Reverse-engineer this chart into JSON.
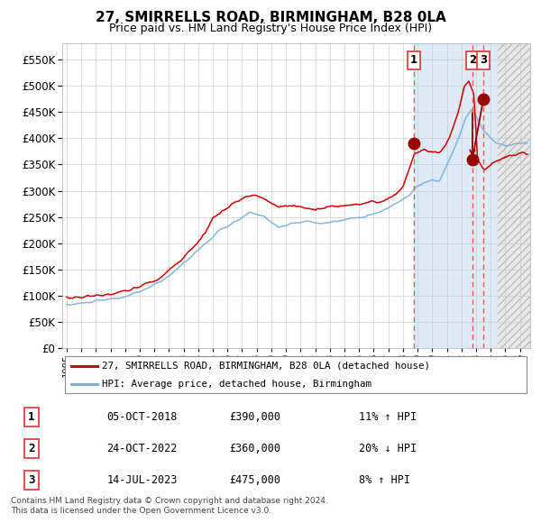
{
  "title": "27, SMIRRELLS ROAD, BIRMINGHAM, B28 0LA",
  "subtitle": "Price paid vs. HM Land Registry's House Price Index (HPI)",
  "legend_line1": "27, SMIRRELLS ROAD, BIRMINGHAM, B28 0LA (detached house)",
  "legend_line2": "HPI: Average price, detached house, Birmingham",
  "footer1": "Contains HM Land Registry data © Crown copyright and database right 2024.",
  "footer2": "This data is licensed under the Open Government Licence v3.0.",
  "sale1_date": "05-OCT-2018",
  "sale1_price": 390000,
  "sale1_label": "11% ↑ HPI",
  "sale2_date": "24-OCT-2022",
  "sale2_price": 360000,
  "sale2_label": "20% ↓ HPI",
  "sale3_date": "14-JUL-2023",
  "sale3_price": 475000,
  "sale3_label": "8% ↑ HPI",
  "hpi_color": "#7aaddc",
  "price_color": "#cc0000",
  "dot_color": "#990000",
  "bg_shaded_color": "#deeaf6",
  "bg_main_color": "#ffffff",
  "grid_color": "#cccccc",
  "sale_vline_color": "#dd4444",
  "future_hatch_color": "#bbbbbb",
  "ylim_max": 580000,
  "ylim_min": 0,
  "xmin": 1994.7,
  "xmax": 2026.7,
  "future_start": 2024.5
}
